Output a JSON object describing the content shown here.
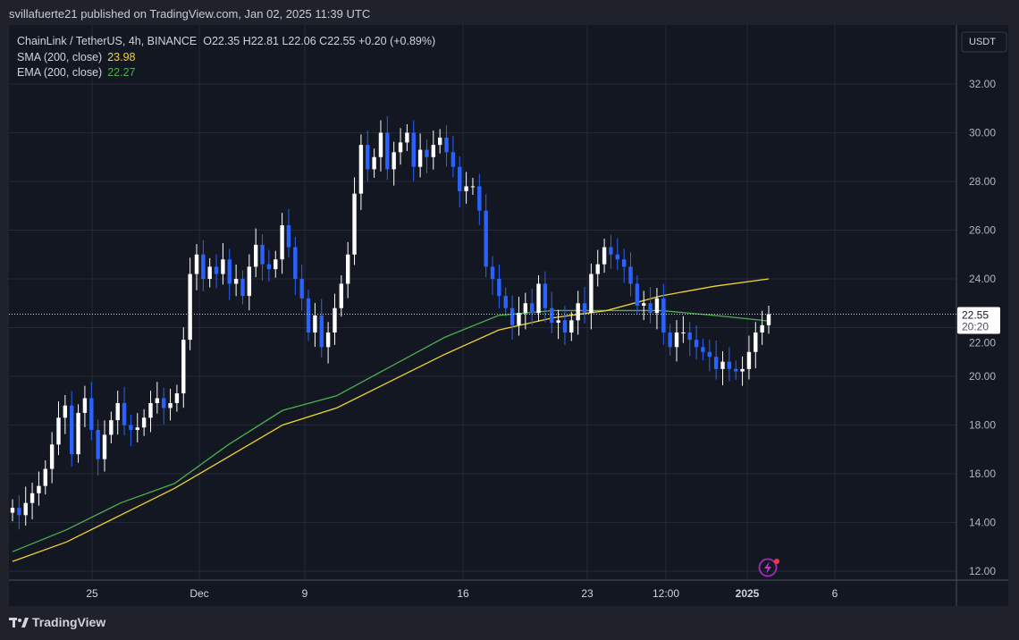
{
  "publisher_line": "svillafuerte21 published on TradingView.com, Jan 02, 2025 11:39 UTC",
  "legend": {
    "symbol": "ChainLink / TetherUS, 4h, BINANCE",
    "ohlc": "O22.35  H22.81  L22.06  C22.55  +0.20 (+0.89%)",
    "sma_label": "SMA (200, close)",
    "sma_value": "23.98",
    "ema_label": "EMA (200, close)",
    "ema_value": "22.27"
  },
  "footer": {
    "brand": "TradingView"
  },
  "chart_data": {
    "type": "candlestick",
    "currency": "USDT",
    "ylim": [
      11.5,
      34
    ],
    "y_ticks": [
      "32.00",
      "30.00",
      "28.00",
      "26.00",
      "24.00",
      "22.00",
      "20.00",
      "18.00",
      "16.00",
      "14.00",
      "12.00"
    ],
    "x_ticks": [
      "25",
      "Dec",
      "9",
      "16",
      "23",
      "12:00",
      "2025",
      "6"
    ],
    "last_price": "22.55",
    "countdown": "20:20",
    "colors": {
      "up": "#ffffff",
      "down": "#2962ff",
      "sma": "#f2d42e",
      "ema": "#4caf50"
    },
    "closes": [
      14.6,
      14.3,
      14.8,
      15.2,
      15.5,
      16.2,
      17.2,
      18.3,
      18.8,
      16.8,
      18.5,
      19.1,
      17.8,
      16.6,
      17.6,
      18.2,
      18.9,
      18.0,
      17.8,
      17.9,
      18.3,
      18.9,
      19.1,
      18.7,
      18.9,
      19.3,
      21.5,
      24.2,
      25.0,
      24.0,
      24.5,
      24.2,
      24.8,
      23.8,
      24.0,
      23.3,
      24.5,
      25.4,
      24.6,
      24.4,
      24.8,
      26.2,
      25.3,
      24.0,
      23.2,
      21.8,
      22.5,
      21.2,
      21.8,
      22.8,
      23.8,
      25.0,
      27.5,
      29.5,
      28.5,
      29.0,
      30.0,
      28.5,
      29.2,
      29.6,
      30.0,
      28.6,
      29.3,
      29.0,
      29.5,
      29.8,
      29.2,
      28.6,
      27.6,
      27.8,
      27.8,
      26.8,
      24.5,
      24.0,
      23.3,
      22.8,
      22.1,
      22.6,
      23.0,
      22.6,
      23.8,
      22.8,
      22.2,
      22.3,
      21.8,
      22.3,
      23.0,
      22.6,
      24.2,
      24.6,
      25.3,
      25.0,
      24.8,
      24.5,
      23.8,
      22.9,
      23.0,
      22.6,
      23.2,
      21.8,
      21.2,
      21.8,
      21.8,
      21.5,
      21.2,
      21.0,
      20.8,
      20.3,
      20.6,
      20.3,
      20.2,
      20.3,
      21.0,
      21.8,
      22.1,
      22.55
    ],
    "sma": [
      12.4,
      13.2,
      14.3,
      15.4,
      16.7,
      18.0,
      18.7,
      19.8,
      20.9,
      21.9,
      22.4,
      22.7,
      23.3,
      23.7,
      24.0
    ],
    "ema": [
      12.8,
      13.7,
      14.8,
      15.6,
      17.2,
      18.6,
      19.2,
      20.4,
      21.6,
      22.5,
      22.7,
      22.7,
      22.7,
      22.5,
      22.27
    ]
  }
}
